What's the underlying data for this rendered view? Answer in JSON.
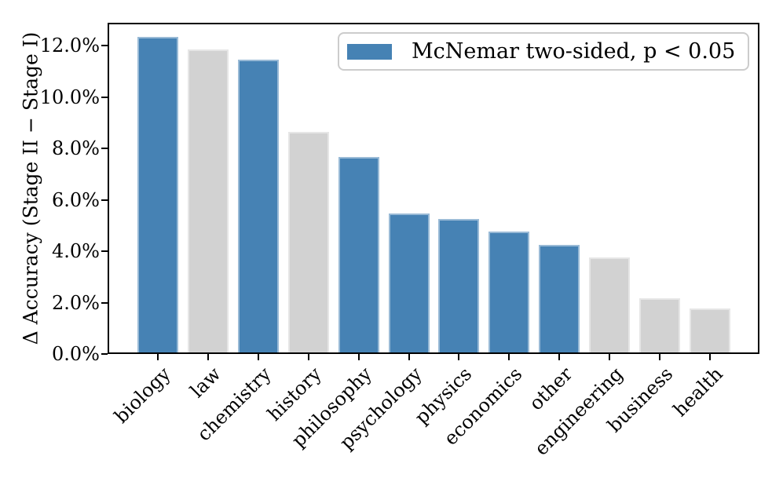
{
  "chart_data": {
    "type": "bar",
    "title": "",
    "xlabel": "",
    "ylabel": "Δ Accuracy (Stage II − Stage I)",
    "categories": [
      "biology",
      "law",
      "chemistry",
      "history",
      "philosophy",
      "psychology",
      "physics",
      "economics",
      "other",
      "engineering",
      "business",
      "health"
    ],
    "values": [
      12.3,
      11.8,
      11.4,
      8.6,
      7.6,
      5.4,
      5.2,
      4.7,
      4.2,
      3.7,
      2.1,
      1.7
    ],
    "significant": [
      true,
      false,
      true,
      false,
      true,
      true,
      true,
      true,
      true,
      false,
      false,
      false
    ],
    "value_unit": "%",
    "ylim": [
      0,
      12.9
    ],
    "yticks": [
      0,
      2,
      4,
      6,
      8,
      10,
      12
    ],
    "ytick_labels": [
      "0.0%",
      "2.0%",
      "4.0%",
      "6.0%",
      "8.0%",
      "10.0%",
      "12.0%"
    ],
    "grid": false,
    "legend": {
      "label": "McNemar two-sided, p < 0.05",
      "position": "upper right"
    },
    "colors": {
      "significant_bar": "#4682b4",
      "not_significant_bar": "#d2d2d2",
      "axis": "#000000",
      "legend_border": "#cccccc"
    }
  }
}
